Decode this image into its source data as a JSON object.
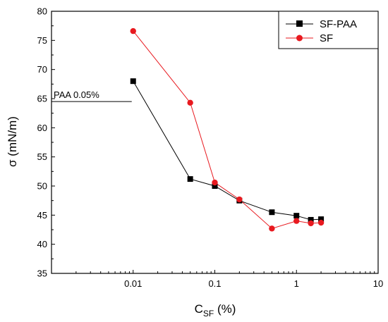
{
  "chart_data": {
    "type": "line",
    "x_scale": "log",
    "xlim": [
      0.001,
      10
    ],
    "ylim": [
      35,
      80
    ],
    "x_ticks": [
      {
        "value": 0.01,
        "label": "0.01"
      },
      {
        "value": 0.1,
        "label": "0.1"
      },
      {
        "value": 1,
        "label": "1"
      },
      {
        "value": 10,
        "label": "10"
      }
    ],
    "y_ticks": [
      35,
      40,
      45,
      50,
      55,
      60,
      65,
      70,
      75,
      80
    ],
    "xlabel_main": "C",
    "xlabel_sub": "SF",
    "xlabel_unit": " (%)",
    "ylabel": "σ (mN/m)",
    "legend_position": "top-right",
    "series": [
      {
        "name": "SF-PAA",
        "color": "#000000",
        "marker": "square",
        "x": [
          0.01,
          0.05,
          0.1,
          0.2,
          0.5,
          1,
          1.5,
          2
        ],
        "y": [
          68.0,
          51.2,
          50.0,
          47.5,
          45.5,
          44.9,
          44.2,
          44.3
        ]
      },
      {
        "name": "SF",
        "color": "#e8191f",
        "marker": "circle",
        "x": [
          0.01,
          0.05,
          0.1,
          0.2,
          0.5,
          1,
          1.5,
          2
        ],
        "y": [
          76.6,
          64.3,
          50.6,
          47.7,
          42.7,
          44.0,
          43.6,
          43.7
        ]
      }
    ],
    "reference_line": {
      "label": "PAA 0.05%",
      "y": 64.5,
      "x_from": 0.001,
      "x_to": 0.01
    }
  }
}
